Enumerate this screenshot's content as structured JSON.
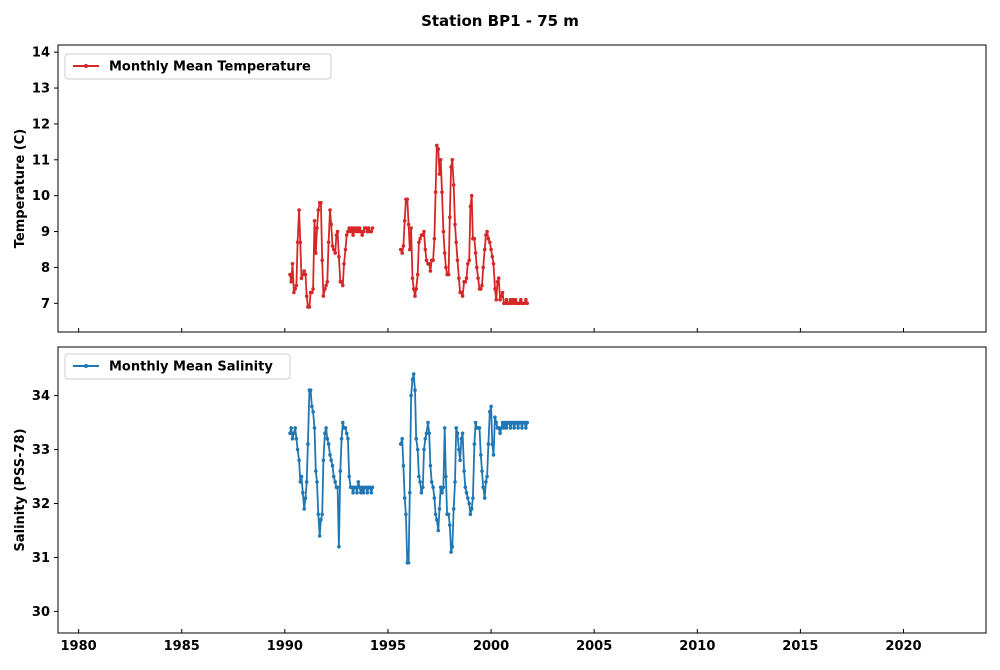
{
  "title": "Station BP1 - 75 m",
  "xticks": [
    "1980",
    "1985",
    "1990",
    "1995",
    "2000",
    "2005",
    "2010",
    "2015",
    "2020"
  ],
  "chart_data": [
    {
      "type": "line",
      "panel": "top",
      "ylabel": "Temperature (C)",
      "xlim": [
        1979.0,
        2024.0
      ],
      "ylim": [
        6.2,
        14.2
      ],
      "yticks": [
        "7",
        "8",
        "9",
        "10",
        "11",
        "12",
        "13",
        "14"
      ],
      "legend_position": "top-left",
      "grid": false,
      "series": [
        {
          "name": "Monthly Mean Temperature",
          "color": "#d62728",
          "segments": [
            {
              "x": [
                1990.25,
                1990.31,
                1990.37,
                1990.44,
                1990.5,
                1990.56,
                1990.62,
                1990.69,
                1990.75,
                1990.81,
                1990.87,
                1990.94,
                1991.0,
                1991.06,
                1991.12,
                1991.19,
                1991.25,
                1991.31,
                1991.37,
                1991.44,
                1991.5,
                1991.56,
                1991.62,
                1991.69,
                1991.75,
                1991.81,
                1991.87,
                1991.94,
                1992.0,
                1992.06,
                1992.12,
                1992.19,
                1992.25,
                1992.31,
                1992.37,
                1992.44,
                1992.5,
                1992.56,
                1992.62,
                1992.69,
                1992.75,
                1992.81,
                1992.87,
                1992.94,
                1993.0,
                1993.06,
                1993.12,
                1993.19,
                1993.25,
                1993.31,
                1993.37,
                1993.44,
                1993.5,
                1993.56,
                1993.62,
                1993.69,
                1993.75,
                1993.81,
                1993.87,
                1993.94,
                1994.0,
                1994.06,
                1994.12,
                1994.19,
                1994.25
              ],
              "y": [
                7.8,
                7.6,
                8.1,
                7.3,
                7.4,
                7.5,
                8.7,
                9.6,
                8.7,
                7.7,
                7.8,
                7.9,
                7.8,
                7.2,
                6.9,
                6.9,
                7.3,
                7.3,
                7.4,
                9.3,
                8.4,
                9.1,
                9.6,
                9.8,
                9.8,
                8.2,
                7.2,
                7.4,
                7.5,
                7.6,
                8.7,
                9.6,
                9.2,
                8.6,
                8.5,
                8.4,
                8.9,
                9.0,
                8.3,
                7.6,
                7.6,
                7.5,
                8.1,
                8.5,
                8.9,
                9.0,
                9.1,
                9.0,
                9.1,
                8.9,
                9.1,
                9.0,
                9.1,
                9.0,
                9.1,
                9.0,
                8.9,
                9.0,
                9.1,
                9.1,
                9.0,
                9.1,
                9.0,
                9.0,
                9.1
              ]
            },
            {
              "x": [
                1995.62,
                1995.69,
                1995.75,
                1995.81,
                1995.87,
                1995.94,
                1996.0,
                1996.06,
                1996.12,
                1996.19,
                1996.25,
                1996.31,
                1996.37,
                1996.44,
                1996.5,
                1996.56,
                1996.62,
                1996.69,
                1996.75,
                1996.81,
                1996.87,
                1996.94,
                1997.0,
                1997.06,
                1997.12,
                1997.19,
                1997.25,
                1997.31,
                1997.37,
                1997.44,
                1997.5,
                1997.56,
                1997.62,
                1997.69,
                1997.75,
                1997.81,
                1997.87,
                1997.94,
                1998.0,
                1998.06,
                1998.12,
                1998.19,
                1998.25,
                1998.31,
                1998.37,
                1998.44,
                1998.5,
                1998.56,
                1998.62,
                1998.69,
                1998.75,
                1998.81,
                1998.87,
                1998.94,
                1999.0,
                1999.06,
                1999.12,
                1999.19,
                1999.25,
                1999.31,
                1999.37,
                1999.44,
                1999.5,
                1999.56,
                1999.62,
                1999.69,
                1999.75,
                1999.81,
                1999.87,
                1999.94,
                2000.0,
                2000.06,
                2000.12,
                2000.19,
                2000.25,
                2000.31,
                2000.37,
                2000.44,
                2000.5,
                2000.56,
                2000.62,
                2000.69,
                2000.75,
                2000.81,
                2000.87,
                2000.94,
                2001.0,
                2001.06,
                2001.12,
                2001.19,
                2001.25,
                2001.31,
                2001.37,
                2001.44,
                2001.5,
                2001.56,
                2001.62,
                2001.69,
                2001.75
              ],
              "y": [
                8.5,
                8.4,
                8.6,
                9.3,
                9.9,
                9.9,
                9.2,
                8.5,
                9.1,
                7.7,
                7.4,
                7.2,
                7.4,
                7.8,
                8.7,
                8.8,
                8.9,
                8.9,
                9.0,
                8.5,
                8.2,
                8.1,
                8.1,
                7.9,
                8.2,
                8.2,
                8.8,
                10.1,
                11.4,
                11.3,
                10.6,
                11.0,
                10.1,
                9.0,
                8.4,
                8.0,
                7.8,
                7.8,
                9.4,
                10.8,
                11.0,
                10.3,
                9.2,
                8.7,
                8.2,
                7.7,
                7.3,
                7.3,
                7.2,
                7.6,
                7.6,
                7.7,
                8.1,
                8.2,
                9.7,
                10.0,
                8.8,
                8.8,
                8.4,
                8.0,
                7.7,
                7.4,
                7.4,
                7.5,
                8.0,
                8.5,
                8.9,
                9.0,
                8.8,
                8.7,
                8.5,
                8.3,
                8.1,
                7.4,
                7.1,
                7.6,
                7.7,
                7.1,
                7.2,
                7.3,
                7.0,
                7.0,
                7.1,
                7.0,
                7.0,
                7.1,
                7.0,
                7.1,
                7.0,
                7.1,
                7.0,
                7.0,
                7.0,
                7.1,
                7.0,
                7.0,
                7.0,
                7.1,
                7.0
              ]
            }
          ]
        }
      ]
    },
    {
      "type": "line",
      "panel": "bottom",
      "ylabel": "Salinity (PSS-78)",
      "xlim": [
        1979.0,
        2024.0
      ],
      "ylim": [
        29.6,
        34.9
      ],
      "yticks": [
        "30",
        "31",
        "32",
        "33",
        "34"
      ],
      "legend_position": "top-left",
      "grid": false,
      "series": [
        {
          "name": "Monthly Mean Salinity",
          "color": "#1f77b4",
          "segments": [
            {
              "x": [
                1990.25,
                1990.31,
                1990.37,
                1990.44,
                1990.5,
                1990.56,
                1990.62,
                1990.69,
                1990.75,
                1990.81,
                1990.87,
                1990.94,
                1991.0,
                1991.06,
                1991.12,
                1991.19,
                1991.25,
                1991.31,
                1991.37,
                1991.44,
                1991.5,
                1991.56,
                1991.62,
                1991.69,
                1991.75,
                1991.81,
                1991.87,
                1991.94,
                1992.0,
                1992.06,
                1992.12,
                1992.19,
                1992.25,
                1992.31,
                1992.37,
                1992.44,
                1992.5,
                1992.56,
                1992.62,
                1992.69,
                1992.75,
                1992.81,
                1992.87,
                1992.94,
                1993.0,
                1993.06,
                1993.12,
                1993.19,
                1993.25,
                1993.31,
                1993.37,
                1993.44,
                1993.5,
                1993.56,
                1993.62,
                1993.69,
                1993.75,
                1993.81,
                1993.87,
                1993.94,
                1994.0,
                1994.06,
                1994.12,
                1994.19,
                1994.25
              ],
              "y": [
                33.3,
                33.4,
                33.2,
                33.3,
                33.4,
                33.2,
                33.0,
                32.8,
                32.4,
                32.5,
                32.2,
                31.9,
                32.1,
                32.4,
                33.1,
                34.1,
                34.1,
                33.8,
                33.7,
                33.4,
                32.6,
                32.4,
                31.8,
                31.4,
                31.7,
                31.8,
                32.8,
                33.3,
                33.4,
                33.2,
                33.1,
                32.9,
                32.8,
                32.7,
                32.5,
                32.4,
                32.3,
                32.3,
                31.2,
                32.6,
                33.2,
                33.5,
                33.4,
                33.4,
                33.3,
                33.2,
                32.5,
                32.3,
                32.3,
                32.2,
                32.3,
                32.3,
                32.2,
                32.4,
                32.3,
                32.2,
                32.3,
                32.2,
                32.3,
                32.3,
                32.2,
                32.3,
                32.3,
                32.2,
                32.3
              ]
            },
            {
              "x": [
                1995.62,
                1995.69,
                1995.75,
                1995.81,
                1995.87,
                1995.94,
                1996.0,
                1996.06,
                1996.12,
                1996.19,
                1996.25,
                1996.31,
                1996.37,
                1996.44,
                1996.5,
                1996.56,
                1996.62,
                1996.69,
                1996.75,
                1996.81,
                1996.87,
                1996.94,
                1997.0,
                1997.06,
                1997.12,
                1997.19,
                1997.25,
                1997.31,
                1997.37,
                1997.44,
                1997.5,
                1997.56,
                1997.62,
                1997.69,
                1997.75,
                1997.81,
                1997.87,
                1997.94,
                1998.0,
                1998.06,
                1998.12,
                1998.19,
                1998.25,
                1998.31,
                1998.37,
                1998.44,
                1998.5,
                1998.56,
                1998.62,
                1998.69,
                1998.75,
                1998.81,
                1998.87,
                1998.94,
                1999.0,
                1999.06,
                1999.12,
                1999.19,
                1999.25,
                1999.31,
                1999.37,
                1999.44,
                1999.5,
                1999.56,
                1999.62,
                1999.69,
                1999.75,
                1999.81,
                1999.87,
                1999.94,
                2000.0,
                2000.06,
                2000.12,
                2000.19,
                2000.25,
                2000.31,
                2000.37,
                2000.44,
                2000.5,
                2000.56,
                2000.62,
                2000.69,
                2000.75,
                2000.81,
                2000.87,
                2000.94,
                2001.0,
                2001.06,
                2001.12,
                2001.19,
                2001.25,
                2001.31,
                2001.37,
                2001.44,
                2001.5,
                2001.56,
                2001.62,
                2001.69,
                2001.75
              ],
              "y": [
                33.1,
                33.2,
                32.7,
                32.1,
                31.8,
                30.9,
                30.9,
                32.2,
                34.0,
                34.3,
                34.4,
                34.1,
                33.2,
                33.0,
                32.5,
                32.4,
                32.2,
                32.3,
                33.0,
                33.2,
                33.3,
                33.5,
                33.3,
                32.7,
                32.4,
                32.3,
                32.1,
                31.8,
                31.7,
                31.5,
                31.9,
                32.3,
                32.2,
                32.3,
                33.4,
                32.5,
                31.8,
                31.8,
                31.6,
                31.1,
                31.2,
                31.9,
                32.4,
                33.4,
                33.3,
                33.0,
                32.8,
                33.2,
                33.3,
                32.6,
                32.3,
                32.2,
                32.1,
                32.0,
                31.8,
                31.9,
                32.1,
                33.1,
                33.5,
                33.4,
                33.4,
                33.4,
                32.9,
                32.6,
                32.3,
                32.1,
                32.4,
                32.5,
                33.1,
                33.7,
                33.8,
                33.1,
                32.9,
                33.6,
                33.5,
                33.4,
                33.4,
                33.3,
                33.4,
                33.5,
                33.4,
                33.5,
                33.4,
                33.5,
                33.5,
                33.4,
                33.5,
                33.5,
                33.4,
                33.5,
                33.5,
                33.4,
                33.5,
                33.5,
                33.4,
                33.5,
                33.5,
                33.4,
                33.5
              ]
            }
          ]
        }
      ]
    }
  ]
}
